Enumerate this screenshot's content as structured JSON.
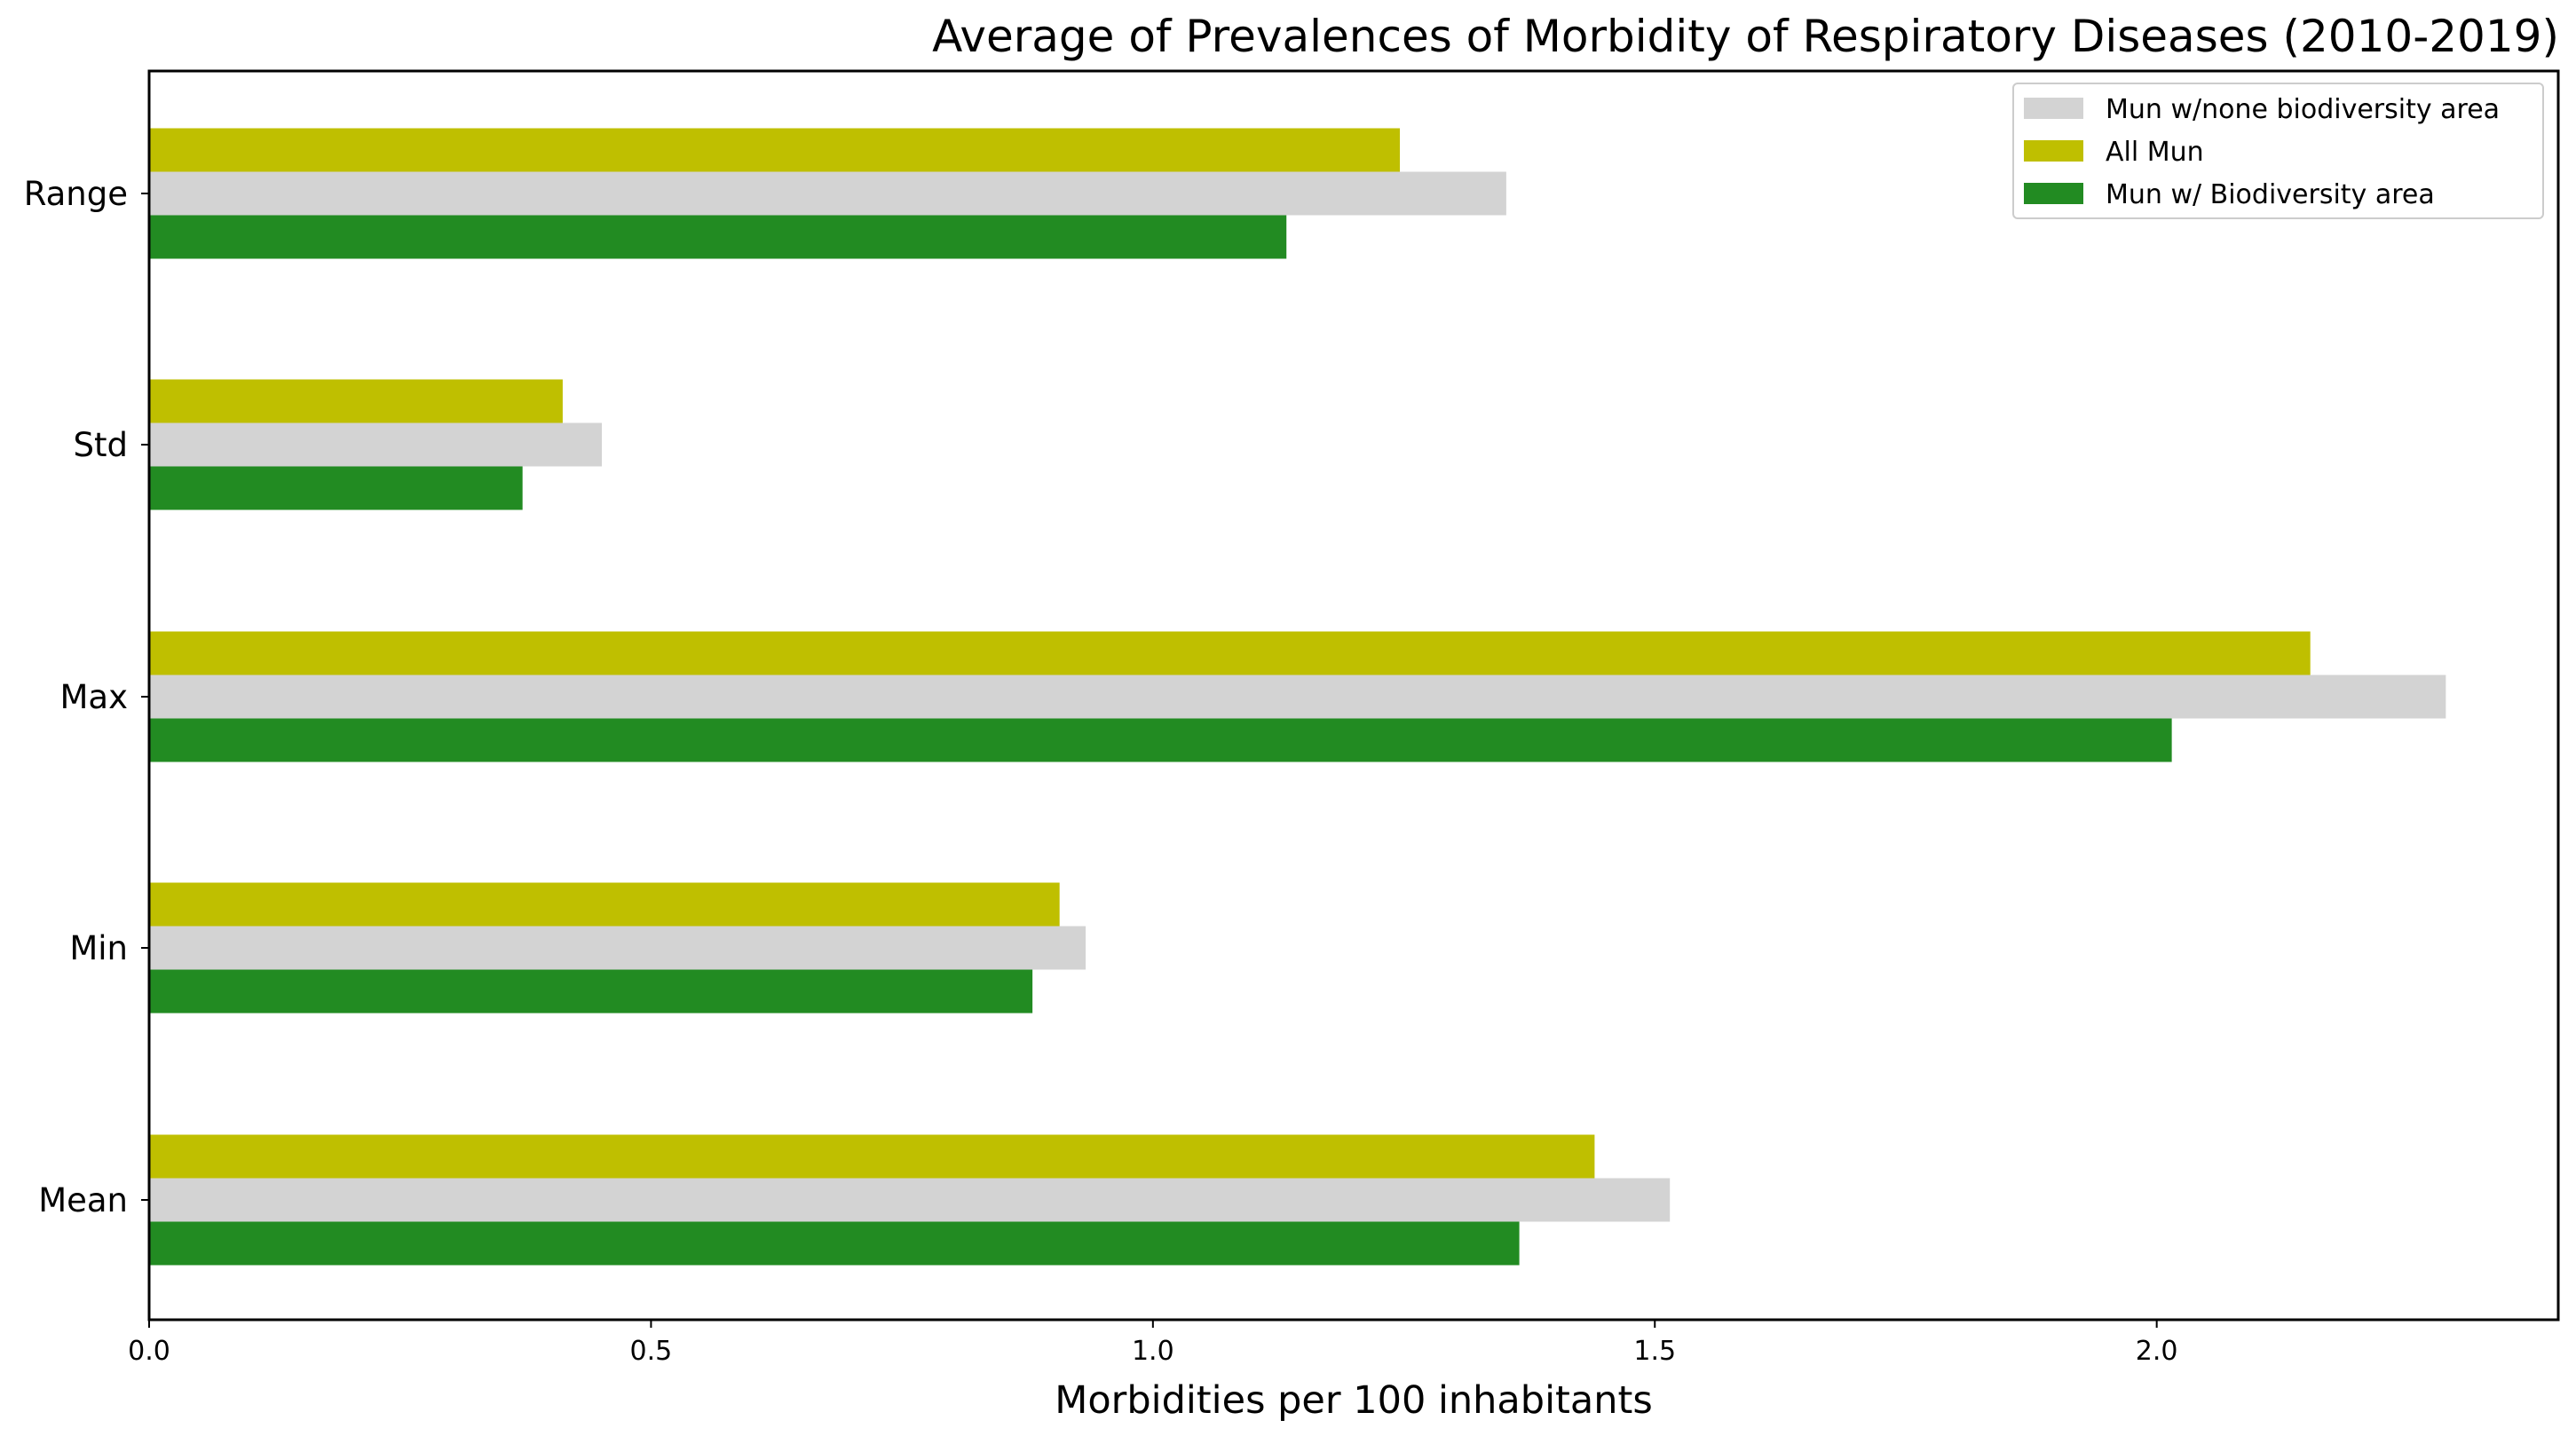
{
  "chart_data": {
    "type": "bar",
    "orientation": "horizontal",
    "title": "Average of Prevalences of Morbidity of Respiratory Diseases (2010-2019)",
    "xlabel": "Morbidities per 100 inhabitants",
    "ylabel": "",
    "xlim": [
      0,
      2.4
    ],
    "xticks": [
      0.0,
      0.5,
      1.0,
      1.5,
      2.0
    ],
    "xtick_labels": [
      "0.0",
      "0.5",
      "1.0",
      "1.5",
      "2.0"
    ],
    "categories": [
      "Mean",
      "Min",
      "Max",
      "Std",
      "Range"
    ],
    "series": [
      {
        "name": "Mun w/ Biodiversity area",
        "color": "#228b22",
        "values": [
          1.365,
          0.88,
          2.015,
          0.372,
          1.133
        ]
      },
      {
        "name": "Mun w/none biodiversity area",
        "color": "#d3d3d3",
        "values": [
          1.515,
          0.933,
          2.288,
          0.451,
          1.352
        ]
      },
      {
        "name": "All Mun",
        "color": "#bfbf00",
        "values": [
          1.44,
          0.907,
          2.153,
          0.412,
          1.246
        ]
      }
    ],
    "legend_order": [
      "Mun w/none biodiversity area",
      "All Mun",
      "Mun w/ Biodiversity area"
    ],
    "legend_position": "top-right",
    "grid": false
  }
}
